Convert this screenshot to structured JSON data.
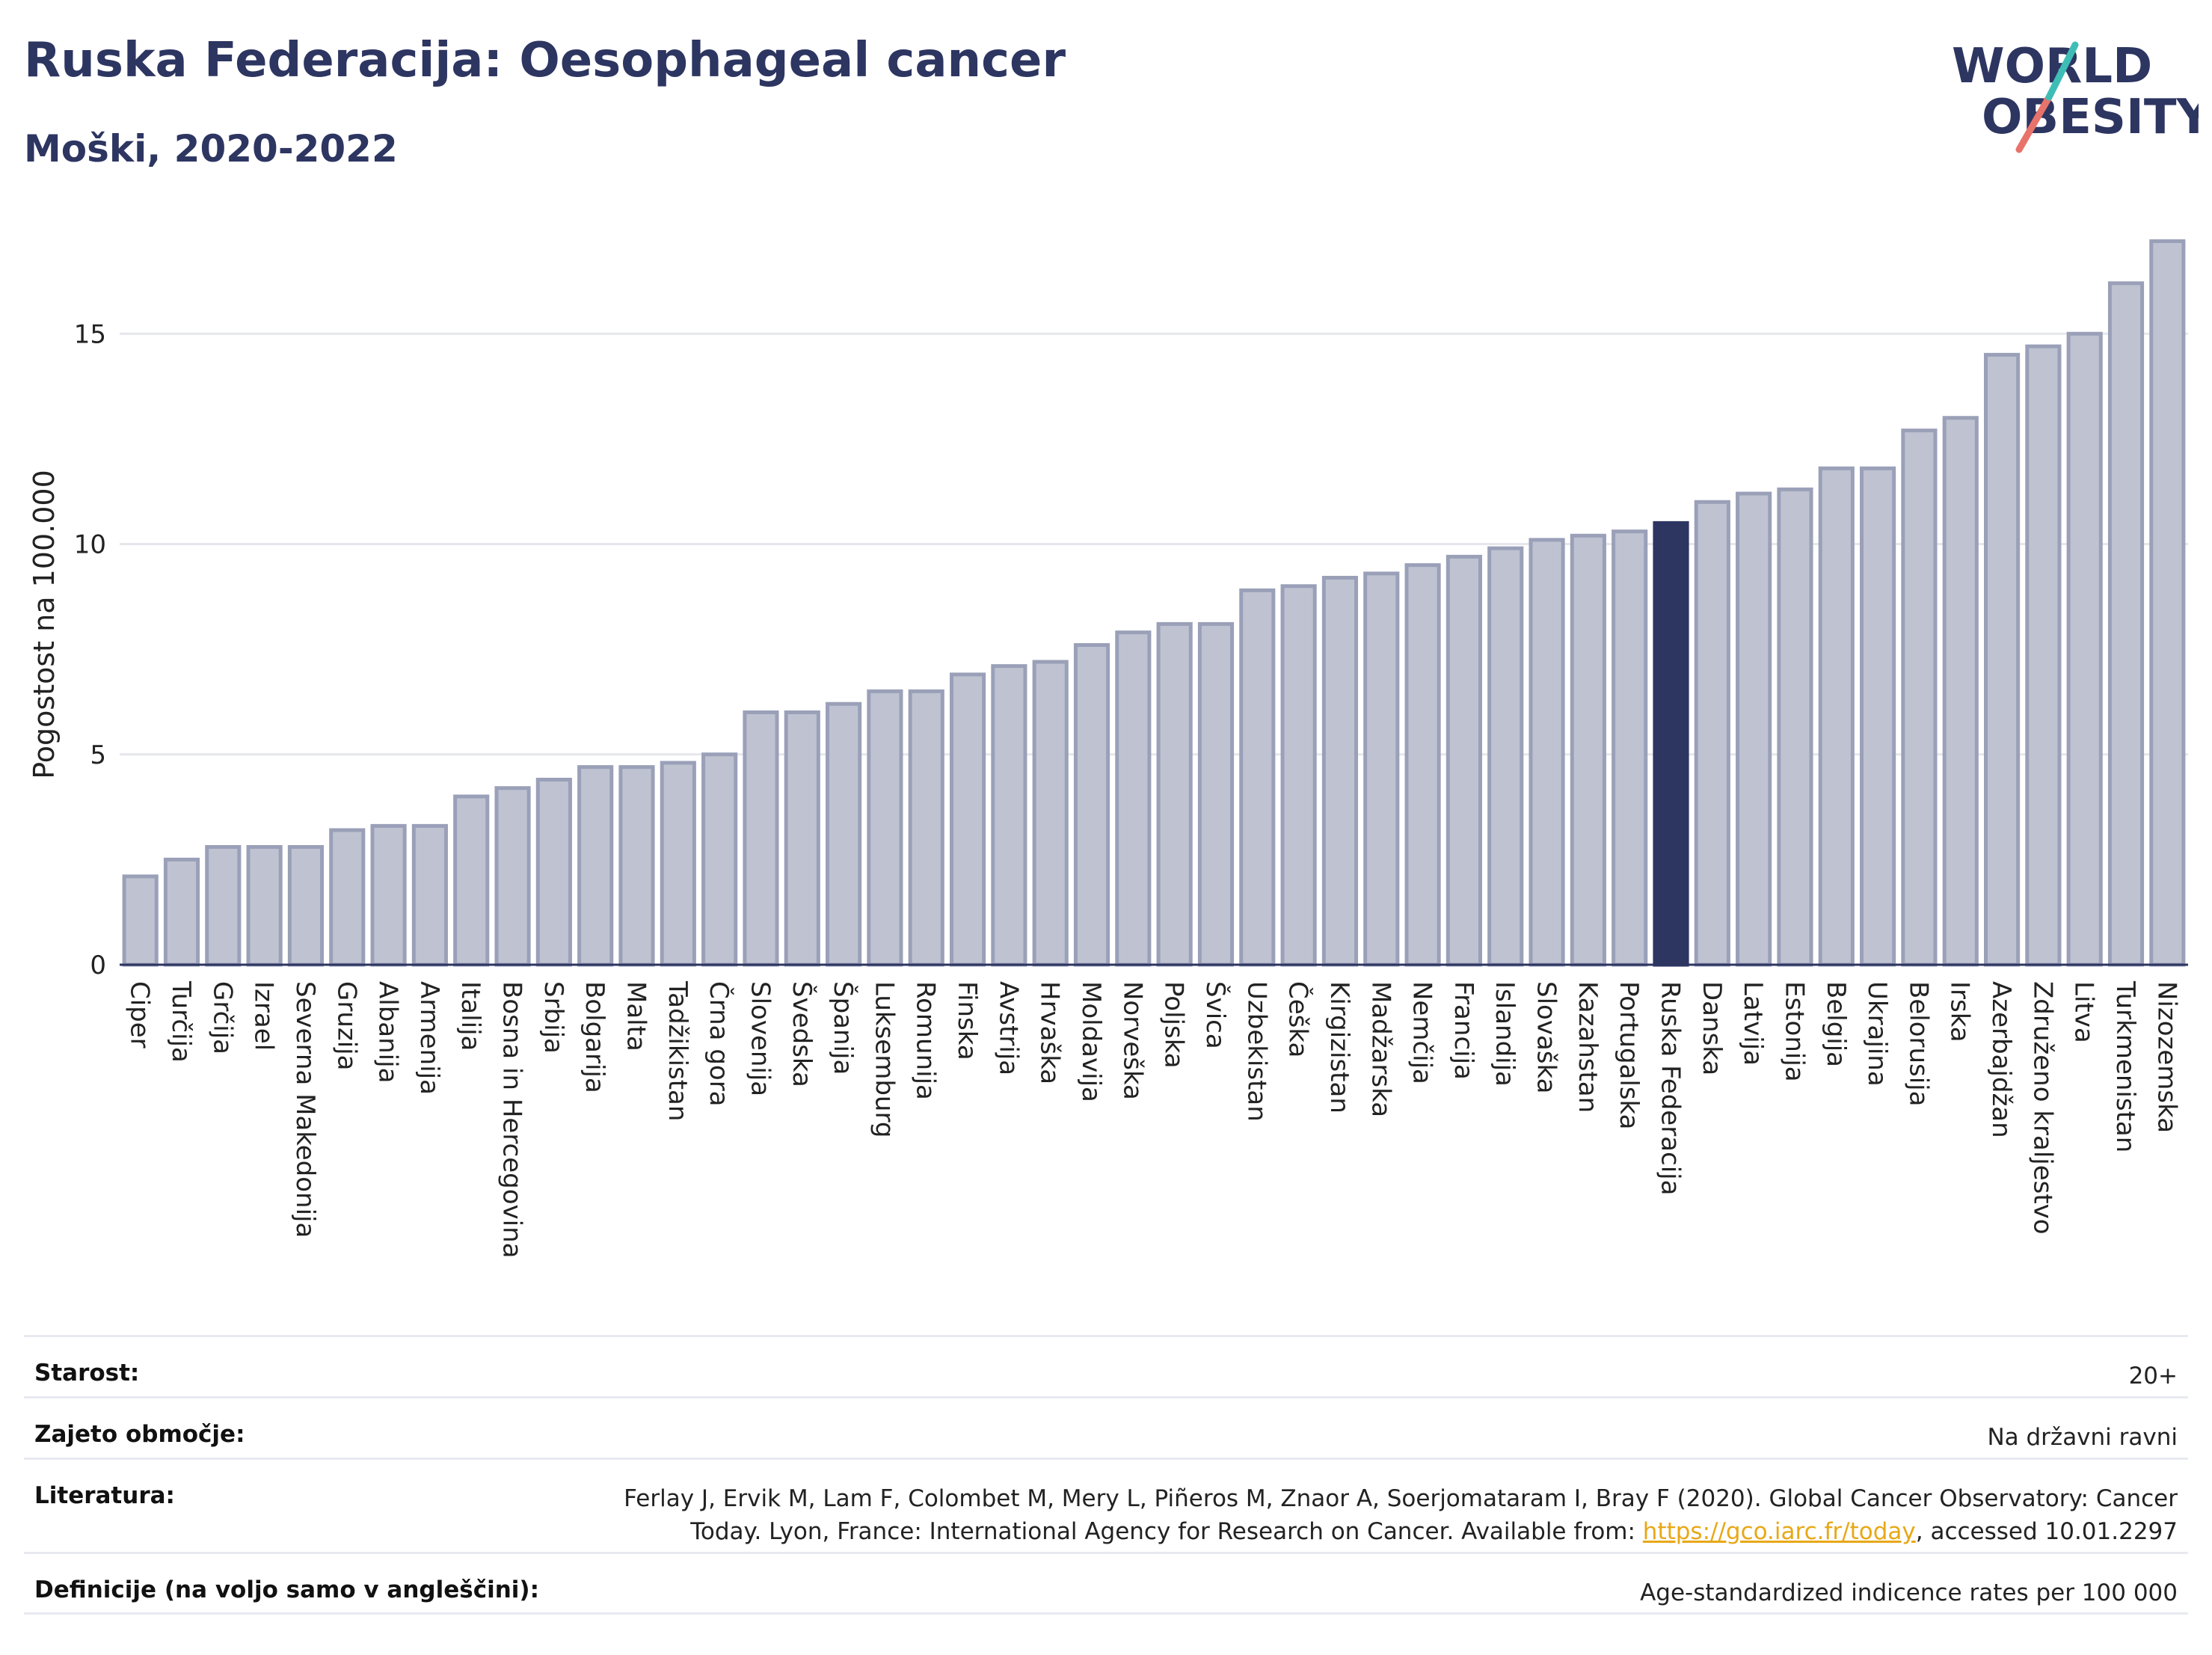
{
  "header": {
    "title": "Ruska Federacija: Oesophageal cancer",
    "subtitle": "Moški, 2020-2022"
  },
  "logo": {
    "line1": "WORLD",
    "line2": "OBESITY"
  },
  "chart_data": {
    "type": "bar",
    "ylabel": "Pogostost na 100.000",
    "ylim": [
      0,
      17.6
    ],
    "yticks": [
      0,
      5,
      10,
      15
    ],
    "grid": true,
    "highlight": "Ruska Federacija",
    "colors": {
      "bar": "#bfc3d1",
      "bar_stroke": "#9aa0b8",
      "highlight": "#2d3561",
      "axis": "#2d3561",
      "grid": "#e6e7ec"
    },
    "categories": [
      "Ciper",
      "Turčija",
      "Grčija",
      "Izrael",
      "Severna Makedonija",
      "Gruzija",
      "Albanija",
      "Armenija",
      "Italija",
      "Bosna in Hercegovina",
      "Srbija",
      "Bolgarija",
      "Malta",
      "Tadžikistan",
      "Črna gora",
      "Slovenija",
      "Švedska",
      "Španija",
      "Luksemburg",
      "Romunija",
      "Finska",
      "Avstrija",
      "Hrvaška",
      "Moldavija",
      "Norveška",
      "Poljska",
      "Švica",
      "Uzbekistan",
      "Češka",
      "Kirgizistan",
      "Madžarska",
      "Nemčija",
      "Francija",
      "Islandija",
      "Slovaška",
      "Kazahstan",
      "Portugalska",
      "Ruska Federacija",
      "Danska",
      "Latvija",
      "Estonija",
      "Belgija",
      "Ukrajina",
      "Belorusija",
      "Irska",
      "Azerbajdžan",
      "Združeno kraljestvo",
      "Litva",
      "Turkmenistan",
      "Nizozemska"
    ],
    "values": [
      2.1,
      2.5,
      2.8,
      2.8,
      2.8,
      3.2,
      3.3,
      3.3,
      4.0,
      4.2,
      4.4,
      4.7,
      4.7,
      4.8,
      5.0,
      6.0,
      6.0,
      6.2,
      6.5,
      6.5,
      6.9,
      7.1,
      7.2,
      7.6,
      7.9,
      8.1,
      8.1,
      8.9,
      9.0,
      9.2,
      9.3,
      9.5,
      9.7,
      9.9,
      10.1,
      10.2,
      10.3,
      10.5,
      11.0,
      11.2,
      11.3,
      11.8,
      11.8,
      12.7,
      13.0,
      14.5,
      14.7,
      15.0,
      16.2,
      17.2
    ]
  },
  "info": {
    "age_label": "Starost:",
    "age_value": "20+",
    "coverage_label": "Zajeto območje:",
    "coverage_value": "Na državni ravni",
    "refs_label": "Literatura:",
    "refs_line1": "Ferlay J, Ervik M, Lam F, Colombet M, Mery L, Piñeros M, Znaor A, Soerjomataram I, Bray F (2020). Global Cancer Observatory: Cancer",
    "refs_line2_pre": "Today. Lyon, France: International Agency for Research on Cancer. Available from: ",
    "refs_link": "https://gco.iarc.fr/today",
    "refs_line2_post": ", accessed 10.01.2297",
    "defs_label": "Definicije (na voljo samo v angleščini):",
    "defs_value": "Age-standardized indicence rates per 100 000"
  }
}
